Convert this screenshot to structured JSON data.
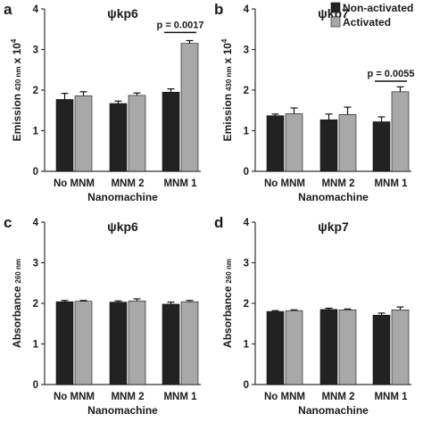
{
  "legend": {
    "entries": [
      {
        "label": "Non-activated",
        "color": "#222222"
      },
      {
        "label": "Activated",
        "color": "#a8a8a8"
      }
    ]
  },
  "chart_data": [
    {
      "type": "bar",
      "panel": "a",
      "title": "ψkp6",
      "ylabel_main": "Emission",
      "ylabel_sub": "430 nm",
      "ylabel_suffix": "x 10",
      "ylabel_exp": "4",
      "xlabel": "Nanomachine",
      "ylim": [
        0,
        4
      ],
      "yticks": [
        "0",
        "1",
        "2",
        "3",
        "4"
      ],
      "categories": [
        "No MNM",
        "MNM 2",
        "MNM 1"
      ],
      "series": [
        {
          "name": "Non-activated",
          "color": "#222222",
          "values": [
            1.77,
            1.67,
            1.95
          ],
          "errors": [
            0.15,
            0.06,
            0.08
          ]
        },
        {
          "name": "Activated",
          "color": "#a8a8a8",
          "values": [
            1.86,
            1.87,
            3.15
          ],
          "errors": [
            0.1,
            0.06,
            0.07
          ]
        }
      ],
      "annotation": {
        "text": "p = 0.0017",
        "category_index": 2,
        "y": 3.42
      }
    },
    {
      "type": "bar",
      "panel": "b",
      "title": "ψkp7",
      "ylabel_main": "Emission",
      "ylabel_sub": "430 nm",
      "ylabel_suffix": "x 10",
      "ylabel_exp": "4",
      "xlabel": "Nanomachine",
      "ylim": [
        0,
        4
      ],
      "yticks": [
        "0",
        "1",
        "2",
        "3",
        "4"
      ],
      "categories": [
        "No MNM",
        "MNM 2",
        "MNM 1"
      ],
      "series": [
        {
          "name": "Non-activated",
          "color": "#222222",
          "values": [
            1.37,
            1.27,
            1.22
          ],
          "errors": [
            0.04,
            0.14,
            0.12
          ]
        },
        {
          "name": "Activated",
          "color": "#a8a8a8",
          "values": [
            1.42,
            1.4,
            1.96
          ],
          "errors": [
            0.14,
            0.18,
            0.12
          ]
        }
      ],
      "annotation": {
        "text": "p = 0.0055",
        "category_index": 2,
        "y": 2.22
      }
    },
    {
      "type": "bar",
      "panel": "c",
      "title": "ψkp6",
      "ylabel_main": "Absorbance",
      "ylabel_sub": "260 nm",
      "ylabel_suffix": "",
      "ylabel_exp": "",
      "xlabel": "Nanomachine",
      "ylim": [
        0,
        4
      ],
      "yticks": [
        "0",
        "1",
        "2",
        "3",
        "4"
      ],
      "categories": [
        "No MNM",
        "MNM 2",
        "MNM 1"
      ],
      "series": [
        {
          "name": "Non-activated",
          "color": "#222222",
          "values": [
            2.04,
            2.03,
            1.98
          ],
          "errors": [
            0.03,
            0.03,
            0.05
          ]
        },
        {
          "name": "Activated",
          "color": "#a8a8a8",
          "values": [
            2.05,
            2.06,
            2.04
          ],
          "errors": [
            0.02,
            0.05,
            0.03
          ]
        }
      ]
    },
    {
      "type": "bar",
      "panel": "d",
      "title": "ψkp7",
      "ylabel_main": "Absorbance",
      "ylabel_sub": "260 nm",
      "ylabel_suffix": "",
      "ylabel_exp": "",
      "xlabel": "Nanomachine",
      "ylim": [
        0,
        4
      ],
      "yticks": [
        "0",
        "1",
        "2",
        "3",
        "4"
      ],
      "categories": [
        "No MNM",
        "MNM 2",
        "MNM 1"
      ],
      "series": [
        {
          "name": "Non-activated",
          "color": "#222222",
          "values": [
            1.8,
            1.85,
            1.71
          ],
          "errors": [
            0.02,
            0.03,
            0.05
          ]
        },
        {
          "name": "Activated",
          "color": "#a8a8a8",
          "values": [
            1.82,
            1.84,
            1.84
          ],
          "errors": [
            0.02,
            0.02,
            0.07
          ]
        }
      ]
    }
  ]
}
